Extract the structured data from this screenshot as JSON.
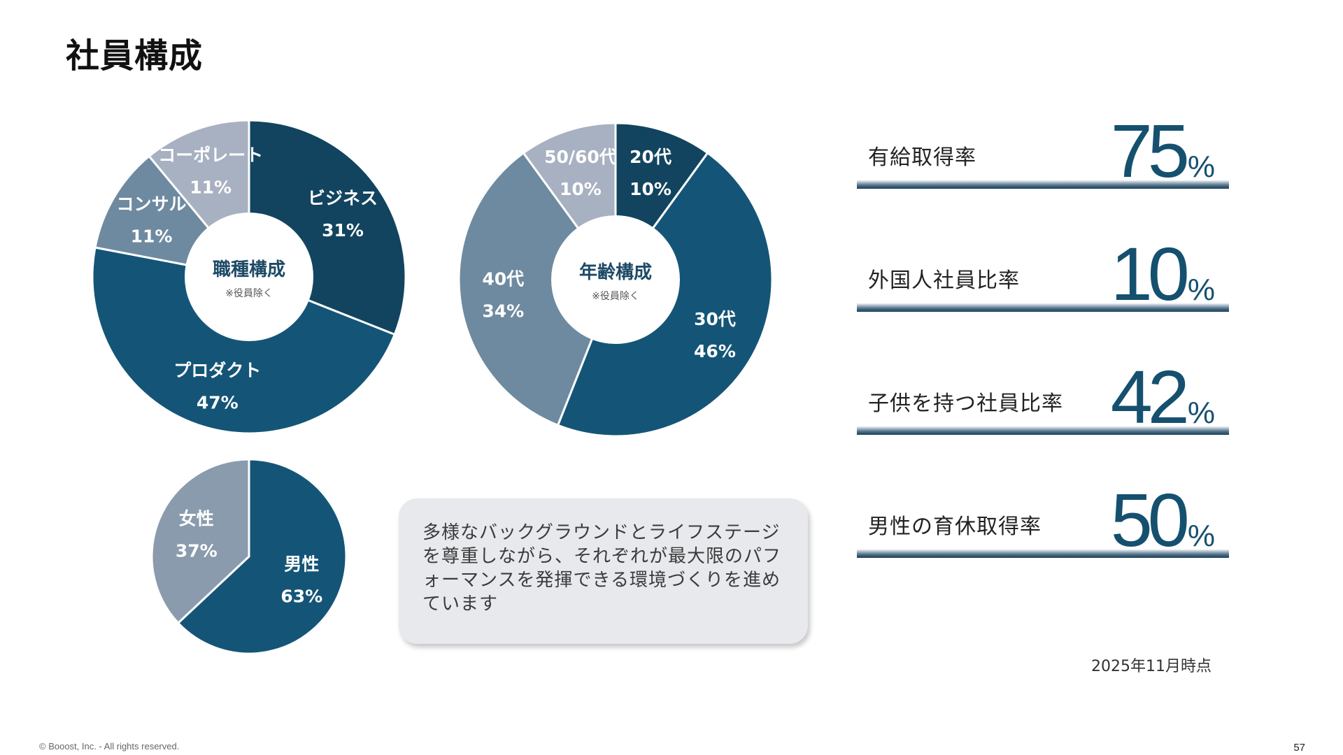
{
  "page": {
    "title": "社員構成",
    "message": "多様なバックグラウンドとライフステージを尊重しながら、それぞれが最大限のパフォーマンスを発揮できる環境づくりを進めています",
    "as_of": "2025年11月時点",
    "copyright": "© Booost, Inc. - All rights reserved.",
    "page_number": "57"
  },
  "chart_data": [
    {
      "type": "pie",
      "donut": true,
      "title": "職種構成",
      "subtitle": "※役員除く",
      "slices": [
        {
          "label": "ビジネス",
          "value": 31,
          "value_label": "31%",
          "color": "#12445f"
        },
        {
          "label": "プロダクト",
          "value": 47,
          "value_label": "47%",
          "color": "#145577"
        },
        {
          "label": "コンサル",
          "value": 11,
          "value_label": "11%",
          "color": "#6e8aa0"
        },
        {
          "label": "コーポレート",
          "value": 11,
          "value_label": "11%",
          "color": "#a8b1c1"
        }
      ]
    },
    {
      "type": "pie",
      "donut": true,
      "title": "年齢構成",
      "subtitle": "※役員除く",
      "slices": [
        {
          "label": "20代",
          "value": 10,
          "value_label": "10%",
          "color": "#12445f"
        },
        {
          "label": "30代",
          "value": 46,
          "value_label": "46%",
          "color": "#145577"
        },
        {
          "label": "40代",
          "value": 34,
          "value_label": "34%",
          "color": "#6e8aa0"
        },
        {
          "label": "50/60代",
          "value": 10,
          "value_label": "10%",
          "color": "#a8b1c1"
        }
      ]
    },
    {
      "type": "pie",
      "donut": false,
      "title": "",
      "subtitle": "",
      "slices": [
        {
          "label": "男性",
          "value": 63,
          "value_label": "63%",
          "color": "#145577"
        },
        {
          "label": "女性",
          "value": 37,
          "value_label": "37%",
          "color": "#8a9bad"
        }
      ]
    }
  ],
  "stats": [
    {
      "label": "有給取得率",
      "value": 75,
      "number": "75",
      "unit": "%"
    },
    {
      "label": "外国人社員比率",
      "value": 10,
      "number": "10",
      "unit": "%"
    },
    {
      "label": "子供を持つ社員比率",
      "value": 42,
      "number": "42",
      "unit": "%"
    },
    {
      "label": "男性の育休取得率",
      "value": 50,
      "number": "50",
      "unit": "%"
    }
  ]
}
